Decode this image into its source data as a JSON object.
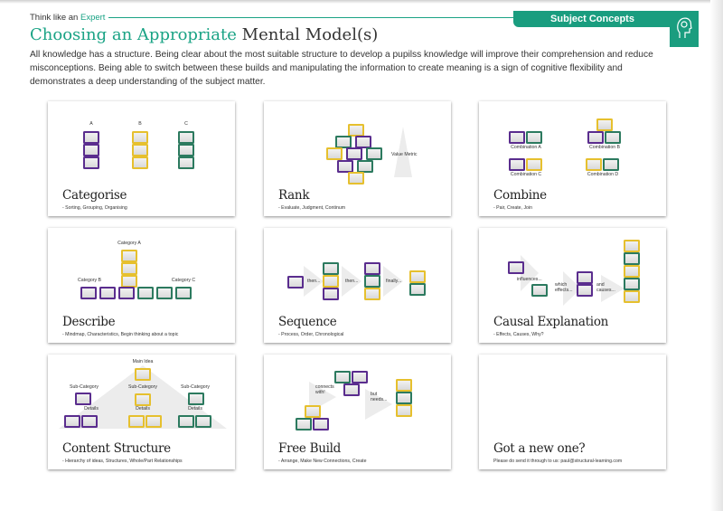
{
  "header": {
    "eyebrow_prefix": "Think like an",
    "eyebrow_accent": "Expert",
    "tab_label": "Subject Concepts",
    "tab_icon": "head-brain-icon",
    "title_accent": "Choosing an Appropriate",
    "title_rest": "Mental Model(s)",
    "intro": "All knowledge has a structure. Being clear about the most suitable structure to develop a pupilss knowledge will improve their comprehension and reduce misconceptions. Being able to switch between these builds and manipulating the information to create meaning is a sign of cognitive flexibility and demonstrates a deep understanding of the subject matter."
  },
  "colors": {
    "accent": "#1aa385",
    "purple": "#5a2d8e",
    "yellow": "#e6c02e",
    "green": "#2c7a5f"
  },
  "cards": [
    {
      "title": "Categorise",
      "subtitle": "- Sorting, Grouping, Organising",
      "labels": [
        "A",
        "B",
        "C"
      ]
    },
    {
      "title": "Rank",
      "subtitle": "- Evaluate, Judgment, Continum",
      "labels": [
        "Value Metric"
      ]
    },
    {
      "title": "Combine",
      "subtitle": "- Pair, Create, Join",
      "labels": [
        "Combination A",
        "Combination B",
        "Combination C",
        "Combination D"
      ]
    },
    {
      "title": "Describe",
      "subtitle": "- Mindmap, Characteristics, Begin thinking about a topic",
      "labels": [
        "Category A",
        "Category B",
        "Category C"
      ]
    },
    {
      "title": "Sequence",
      "subtitle": "- Process, Order, Chronological",
      "labels": [
        "then...",
        "then...",
        "finally..."
      ]
    },
    {
      "title": "Causal Explanation",
      "subtitle": "- Effects, Causes, Why?",
      "labels": [
        "influences...",
        "which effects...",
        "and causes..."
      ]
    },
    {
      "title": "Content Structure",
      "subtitle": "- Hierarchy of ideas, Structures, Whole/Part Relationships",
      "labels": [
        "Main Idea",
        "Sub-Category",
        "Sub-Category",
        "Sub-Category",
        "Details",
        "Details",
        "Details"
      ]
    },
    {
      "title": "Free Build",
      "subtitle": "- Arrange, Make New Connections, Create",
      "labels": [
        "connects with!",
        "but needs..."
      ]
    },
    {
      "title": "Got a new one?",
      "subtitle": "Please do send it through to us: paul@structural-learning.com",
      "labels": []
    }
  ]
}
